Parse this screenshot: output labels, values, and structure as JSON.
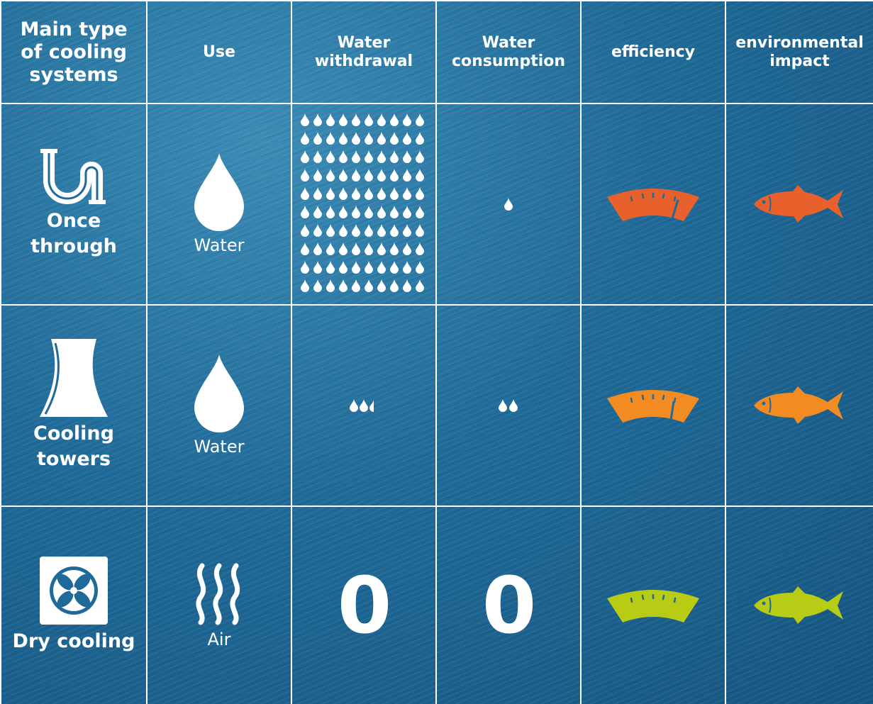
{
  "header": {
    "col1": "Main type of cooling systems",
    "col2": "Use",
    "col3": "Water withdrawal",
    "col4": "Water consumption",
    "col5": "efficiency",
    "col6": "environmental impact"
  },
  "rows": [
    {
      "label": "Once through",
      "icon": "pipe-icon",
      "use_label": "Water",
      "use_icon": "water-drop-icon",
      "withdrawal_drops": 100,
      "consumption_drops": 1,
      "efficiency_color": "#e8602c",
      "impact_color": "#e8602c"
    },
    {
      "label": "Cooling towers",
      "icon": "cooling-tower-icon",
      "use_label": "Water",
      "use_icon": "water-drop-icon",
      "withdrawal_drops": 2.5,
      "consumption_drops": 2,
      "efficiency_color": "#f28c22",
      "impact_color": "#f28c22"
    },
    {
      "label": "Dry cooling",
      "icon": "fan-icon",
      "use_label": "Air",
      "use_icon": "air-waves-icon",
      "withdrawal_value": "0",
      "consumption_value": "0",
      "efficiency_color": "#b8cc16",
      "impact_color": "#b8cc16"
    }
  ],
  "colors": {
    "background": "#1f6a98",
    "grid_lines": "#ffffff"
  }
}
